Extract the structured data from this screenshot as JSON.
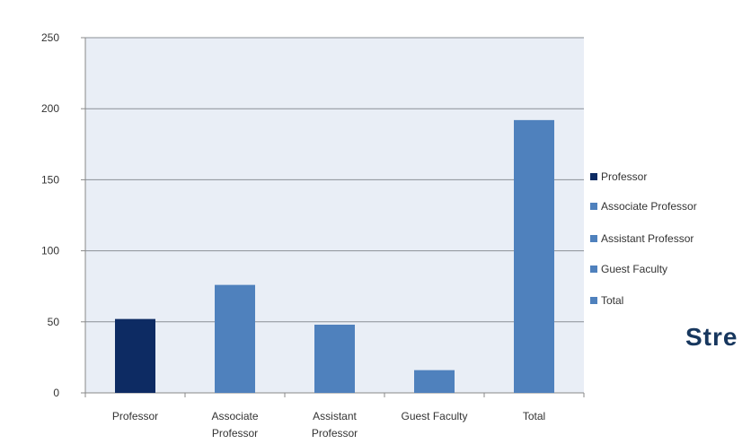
{
  "chart_data": {
    "type": "bar",
    "categories": [
      "Professor",
      "Associate Professor",
      "Assistant Professor",
      "Guest Faculty",
      "Total"
    ],
    "category_lines": [
      [
        "Professor"
      ],
      [
        "Associate",
        "Professor"
      ],
      [
        "Assistant",
        "Professor"
      ],
      [
        "Guest Faculty"
      ],
      [
        "Total"
      ]
    ],
    "values": [
      52,
      76,
      48,
      16,
      192
    ],
    "colors": [
      "#0d2b63",
      "#4f81bd",
      "#4f81bd",
      "#4f81bd",
      "#4f81bd"
    ],
    "ylim": [
      0,
      250
    ],
    "yticks": [
      0,
      50,
      100,
      150,
      200,
      250
    ],
    "grid": true,
    "plot_background": "#e9eef6",
    "gridline_color": "#8a8f96",
    "legend_position": "right"
  },
  "legend": [
    {
      "label": "Professor",
      "color": "#0d2b63"
    },
    {
      "label": "Associate Professor",
      "color": "#4f81bd"
    },
    {
      "label": "Assistant Professor",
      "color": "#4f81bd"
    },
    {
      "label": "Guest Faculty",
      "color": "#4f81bd"
    },
    {
      "label": "Total",
      "color": "#4f81bd"
    }
  ],
  "side_text": "Stre"
}
